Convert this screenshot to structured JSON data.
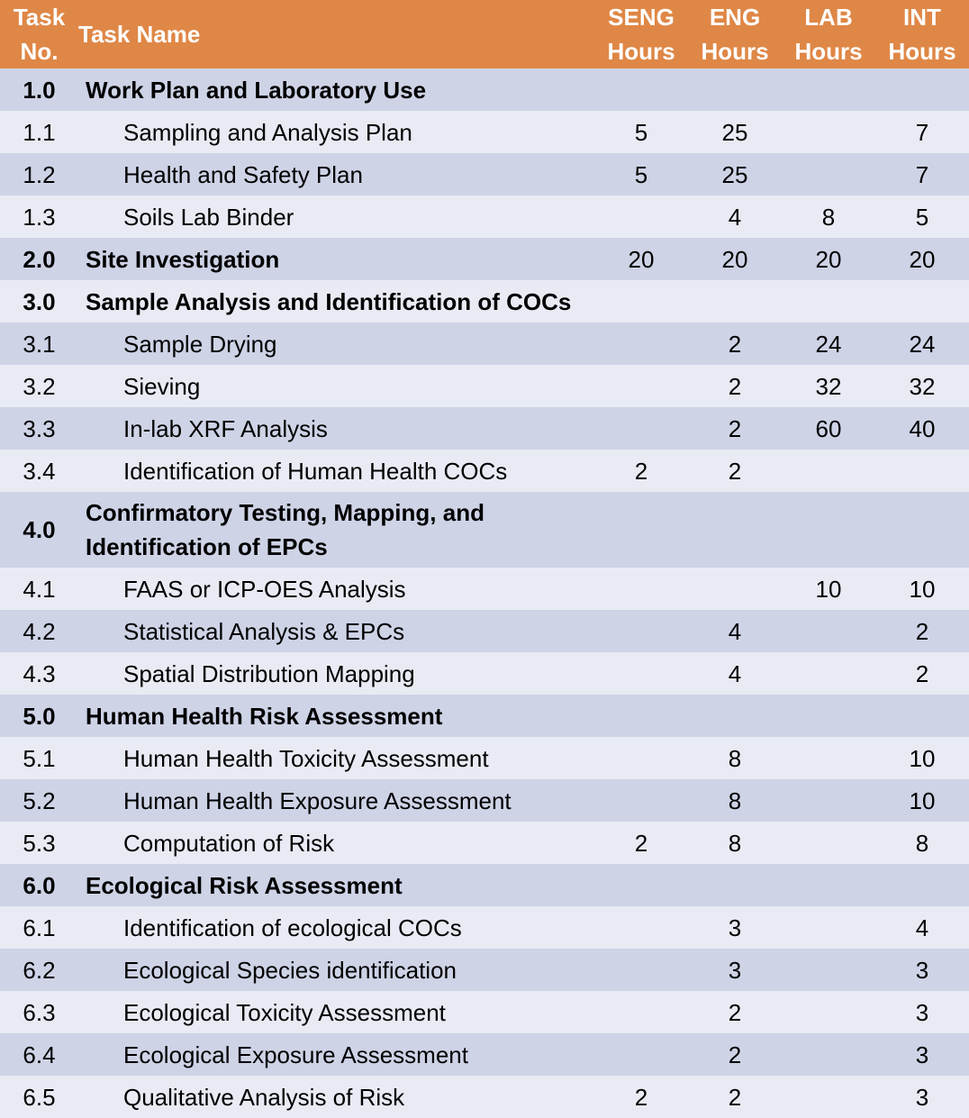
{
  "header": {
    "task_no": "Task\nNo.",
    "task_name": "Task Name",
    "seng": "SENG\nHours",
    "eng": "ENG\nHours",
    "lab": "LAB\nHours",
    "int": "INT\nHours"
  },
  "rows": [
    {
      "no": "1.0",
      "name": "Work Plan and Laboratory Use",
      "seng": "",
      "eng": "",
      "lab": "",
      "int": "",
      "main": true
    },
    {
      "no": "1.1",
      "name": "Sampling and Analysis Plan",
      "seng": "5",
      "eng": "25",
      "lab": "",
      "int": "7"
    },
    {
      "no": "1.2",
      "name": "Health and Safety Plan",
      "seng": "5",
      "eng": "25",
      "lab": "",
      "int": "7"
    },
    {
      "no": "1.3",
      "name": "Soils Lab Binder",
      "seng": "",
      "eng": "4",
      "lab": "8",
      "int": "5"
    },
    {
      "no": "2.0",
      "name": "Site Investigation",
      "seng": "20",
      "eng": "20",
      "lab": "20",
      "int": "20",
      "main": true
    },
    {
      "no": "3.0",
      "name": "Sample Analysis and Identification of COCs",
      "seng": "",
      "eng": "",
      "lab": "",
      "int": "",
      "main": true
    },
    {
      "no": "3.1",
      "name": "Sample Drying",
      "seng": "",
      "eng": "2",
      "lab": "24",
      "int": "24"
    },
    {
      "no": "3.2",
      "name": "Sieving",
      "seng": "",
      "eng": "2",
      "lab": "32",
      "int": "32"
    },
    {
      "no": "3.3",
      "name": "In-lab XRF Analysis",
      "seng": "",
      "eng": "2",
      "lab": "60",
      "int": "40"
    },
    {
      "no": "3.4",
      "name": "Identification of Human Health COCs",
      "seng": "2",
      "eng": "2",
      "lab": "",
      "int": ""
    },
    {
      "no": "4.0",
      "name": "Confirmatory Testing, Mapping, and Identification of EPCs",
      "seng": "",
      "eng": "",
      "lab": "",
      "int": "",
      "main": true,
      "tall": true
    },
    {
      "no": "4.1",
      "name": "FAAS or ICP-OES Analysis",
      "seng": "",
      "eng": "",
      "lab": "10",
      "int": "10"
    },
    {
      "no": "4.2",
      "name": "Statistical Analysis & EPCs",
      "seng": "",
      "eng": "4",
      "lab": "",
      "int": "2"
    },
    {
      "no": "4.3",
      "name": "Spatial Distribution Mapping",
      "seng": "",
      "eng": "4",
      "lab": "",
      "int": "2"
    },
    {
      "no": "5.0",
      "name": "Human Health Risk Assessment",
      "seng": "",
      "eng": "",
      "lab": "",
      "int": "",
      "main": true
    },
    {
      "no": "5.1",
      "name": "Human Health Toxicity Assessment",
      "seng": "",
      "eng": "8",
      "lab": "",
      "int": "10"
    },
    {
      "no": "5.2",
      "name": "Human Health Exposure Assessment",
      "seng": "",
      "eng": "8",
      "lab": "",
      "int": "10"
    },
    {
      "no": "5.3",
      "name": "Computation of Risk",
      "seng": "2",
      "eng": "8",
      "lab": "",
      "int": "8"
    },
    {
      "no": "6.0",
      "name": "Ecological Risk Assessment",
      "seng": "",
      "eng": "",
      "lab": "",
      "int": "",
      "main": true
    },
    {
      "no": "6.1",
      "name": "Identification of ecological COCs",
      "seng": "",
      "eng": "3",
      "lab": "",
      "int": "4"
    },
    {
      "no": "6.2",
      "name": "Ecological Species identification",
      "seng": "",
      "eng": "3",
      "lab": "",
      "int": "3"
    },
    {
      "no": "6.3",
      "name": "Ecological Toxicity Assessment",
      "seng": "",
      "eng": "2",
      "lab": "",
      "int": "3"
    },
    {
      "no": "6.4",
      "name": "Ecological Exposure Assessment",
      "seng": "",
      "eng": "2",
      "lab": "",
      "int": "3"
    },
    {
      "no": "6.5",
      "name": "Qualitative Analysis of Risk",
      "seng": "2",
      "eng": "2",
      "lab": "",
      "int": "3"
    }
  ]
}
